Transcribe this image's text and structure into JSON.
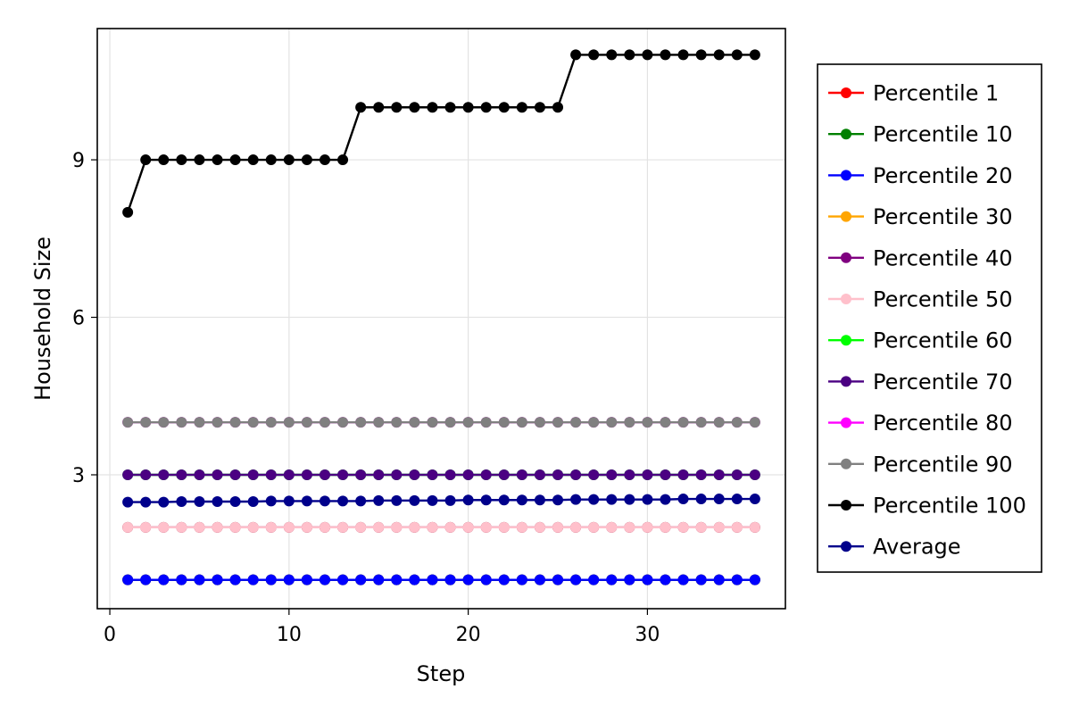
{
  "chart_data": {
    "type": "line",
    "xlabel": "Step",
    "ylabel": "Household Size",
    "xlim": [
      -0.7,
      37.7
    ],
    "ylim": [
      0.45,
      11.5
    ],
    "x_ticks": [
      0,
      10,
      20,
      30
    ],
    "y_ticks": [
      3,
      6,
      9
    ],
    "grid": true,
    "legend_position": "right",
    "x": [
      1,
      2,
      3,
      4,
      5,
      6,
      7,
      8,
      9,
      10,
      11,
      12,
      13,
      14,
      15,
      16,
      17,
      18,
      19,
      20,
      21,
      22,
      23,
      24,
      25,
      26,
      27,
      28,
      29,
      30,
      31,
      32,
      33,
      34,
      35,
      36
    ],
    "series": [
      {
        "name": "Percentile 1",
        "color": "#ff0000",
        "values": [
          1,
          1,
          1,
          1,
          1,
          1,
          1,
          1,
          1,
          1,
          1,
          1,
          1,
          1,
          1,
          1,
          1,
          1,
          1,
          1,
          1,
          1,
          1,
          1,
          1,
          1,
          1,
          1,
          1,
          1,
          1,
          1,
          1,
          1,
          1,
          1
        ]
      },
      {
        "name": "Percentile 10",
        "color": "#008000",
        "values": [
          1,
          1,
          1,
          1,
          1,
          1,
          1,
          1,
          1,
          1,
          1,
          1,
          1,
          1,
          1,
          1,
          1,
          1,
          1,
          1,
          1,
          1,
          1,
          1,
          1,
          1,
          1,
          1,
          1,
          1,
          1,
          1,
          1,
          1,
          1,
          1
        ]
      },
      {
        "name": "Percentile 20",
        "color": "#0000ff",
        "values": [
          1,
          1,
          1,
          1,
          1,
          1,
          1,
          1,
          1,
          1,
          1,
          1,
          1,
          1,
          1,
          1,
          1,
          1,
          1,
          1,
          1,
          1,
          1,
          1,
          1,
          1,
          1,
          1,
          1,
          1,
          1,
          1,
          1,
          1,
          1,
          1
        ]
      },
      {
        "name": "Percentile 30",
        "color": "#ffa500",
        "values": [
          2,
          2,
          2,
          2,
          2,
          2,
          2,
          2,
          2,
          2,
          2,
          2,
          2,
          2,
          2,
          2,
          2,
          2,
          2,
          2,
          2,
          2,
          2,
          2,
          2,
          2,
          2,
          2,
          2,
          2,
          2,
          2,
          2,
          2,
          2,
          2
        ]
      },
      {
        "name": "Percentile 40",
        "color": "#800080",
        "values": [
          2,
          2,
          2,
          2,
          2,
          2,
          2,
          2,
          2,
          2,
          2,
          2,
          2,
          2,
          2,
          2,
          2,
          2,
          2,
          2,
          2,
          2,
          2,
          2,
          2,
          2,
          2,
          2,
          2,
          2,
          2,
          2,
          2,
          2,
          2,
          2
        ]
      },
      {
        "name": "Percentile 50",
        "color": "#ffc0cb",
        "values": [
          2,
          2,
          2,
          2,
          2,
          2,
          2,
          2,
          2,
          2,
          2,
          2,
          2,
          2,
          2,
          2,
          2,
          2,
          2,
          2,
          2,
          2,
          2,
          2,
          2,
          2,
          2,
          2,
          2,
          2,
          2,
          2,
          2,
          2,
          2,
          2
        ]
      },
      {
        "name": "Percentile 60",
        "color": "#00ff00",
        "values": [
          3,
          3,
          3,
          3,
          3,
          3,
          3,
          3,
          3,
          3,
          3,
          3,
          3,
          3,
          3,
          3,
          3,
          3,
          3,
          3,
          3,
          3,
          3,
          3,
          3,
          3,
          3,
          3,
          3,
          3,
          3,
          3,
          3,
          3,
          3,
          3
        ]
      },
      {
        "name": "Percentile 70",
        "color": "#4b0082",
        "values": [
          3,
          3,
          3,
          3,
          3,
          3,
          3,
          3,
          3,
          3,
          3,
          3,
          3,
          3,
          3,
          3,
          3,
          3,
          3,
          3,
          3,
          3,
          3,
          3,
          3,
          3,
          3,
          3,
          3,
          3,
          3,
          3,
          3,
          3,
          3,
          3
        ]
      },
      {
        "name": "Percentile 80",
        "color": "#ff00ff",
        "values": [
          4,
          4,
          4,
          4,
          4,
          4,
          4,
          4,
          4,
          4,
          4,
          4,
          4,
          4,
          4,
          4,
          4,
          4,
          4,
          4,
          4,
          4,
          4,
          4,
          4,
          4,
          4,
          4,
          4,
          4,
          4,
          4,
          4,
          4,
          4,
          4
        ]
      },
      {
        "name": "Percentile 90",
        "color": "#808080",
        "values": [
          4,
          4,
          4,
          4,
          4,
          4,
          4,
          4,
          4,
          4,
          4,
          4,
          4,
          4,
          4,
          4,
          4,
          4,
          4,
          4,
          4,
          4,
          4,
          4,
          4,
          4,
          4,
          4,
          4,
          4,
          4,
          4,
          4,
          4,
          4,
          4
        ]
      },
      {
        "name": "Percentile 100",
        "color": "#000000",
        "values": [
          8,
          9,
          9,
          9,
          9,
          9,
          9,
          9,
          9,
          9,
          9,
          9,
          9,
          10,
          10,
          10,
          10,
          10,
          10,
          10,
          10,
          10,
          10,
          10,
          10,
          11,
          11,
          11,
          11,
          11,
          11,
          11,
          11,
          11,
          11,
          11
        ]
      },
      {
        "name": "Average",
        "color": "#00008b",
        "values": [
          2.48,
          2.48,
          2.48,
          2.49,
          2.49,
          2.49,
          2.49,
          2.49,
          2.5,
          2.5,
          2.5,
          2.5,
          2.5,
          2.5,
          2.51,
          2.51,
          2.51,
          2.51,
          2.51,
          2.52,
          2.52,
          2.52,
          2.52,
          2.52,
          2.52,
          2.53,
          2.53,
          2.53,
          2.53,
          2.53,
          2.53,
          2.54,
          2.54,
          2.54,
          2.54,
          2.54
        ]
      }
    ]
  }
}
